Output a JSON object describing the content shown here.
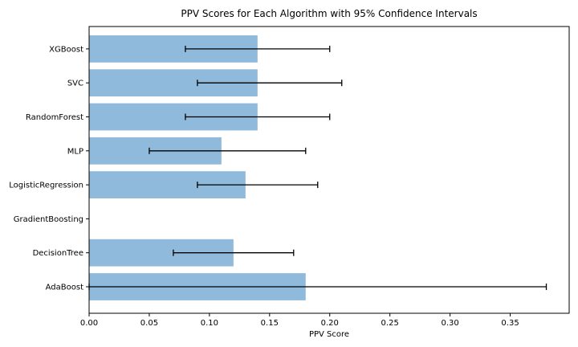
{
  "chart_data": {
    "type": "bar",
    "orientation": "horizontal",
    "title": "PPV Scores for Each Algorithm with 95% Confidence Intervals",
    "xlabel": "PPV Score",
    "ylabel": "",
    "xlim": [
      0,
      0.399
    ],
    "xticks": [
      0.0,
      0.05,
      0.1,
      0.15,
      0.2,
      0.25,
      0.3,
      0.35
    ],
    "xtick_labels": [
      "0.00",
      "0.05",
      "0.10",
      "0.15",
      "0.20",
      "0.25",
      "0.30",
      "0.35"
    ],
    "categories": [
      "AdaBoost",
      "DecisionTree",
      "GradientBoosting",
      "LogisticRegression",
      "MLP",
      "RandomForest",
      "SVC",
      "XGBoost"
    ],
    "values": [
      0.18,
      0.12,
      0.0,
      0.13,
      0.11,
      0.14,
      0.14,
      0.14
    ],
    "ci_lower": [
      0.0,
      0.07,
      null,
      0.09,
      0.05,
      0.08,
      0.09,
      0.08
    ],
    "ci_upper": [
      0.38,
      0.17,
      null,
      0.19,
      0.18,
      0.2,
      0.21,
      0.2
    ],
    "bar_color": "#8fbadb",
    "errorbar_color": "#000000",
    "grid": false,
    "legend": false
  }
}
